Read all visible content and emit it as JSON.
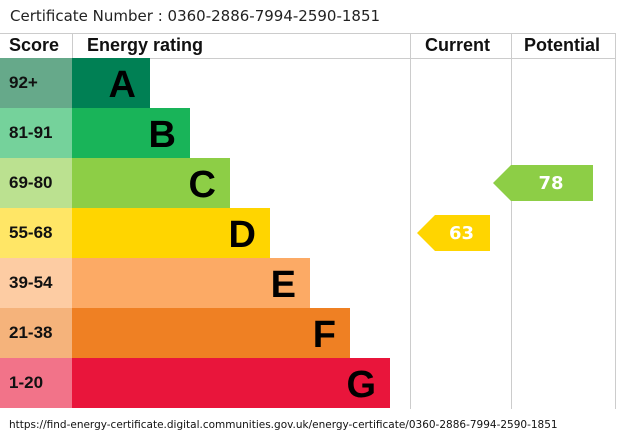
{
  "certificate": {
    "label": "Certificate Number : 0360-2886-7994-2590-1851"
  },
  "chart_data": {
    "type": "table",
    "headers": {
      "score": "Score",
      "rating": "Energy rating",
      "current": "Current",
      "potential": "Potential"
    },
    "bands": [
      {
        "score": "92+",
        "letter": "A",
        "color": "#008054",
        "score_color": "#66a98a"
      },
      {
        "score": "81-91",
        "letter": "B",
        "color": "#19b459",
        "score_color": "#75d29b"
      },
      {
        "score": "69-80",
        "letter": "C",
        "color": "#8dce46",
        "score_color": "#bbe190"
      },
      {
        "score": "55-68",
        "letter": "D",
        "color": "#ffd500",
        "score_color": "#ffe666"
      },
      {
        "score": "39-54",
        "letter": "E",
        "color": "#fcaa65",
        "score_color": "#fdcca3"
      },
      {
        "score": "21-38",
        "letter": "F",
        "color": "#ef8023",
        "score_color": "#f5b37b"
      },
      {
        "score": "1-20",
        "letter": "G",
        "color": "#e9153b",
        "score_color": "#f27389"
      }
    ],
    "current": {
      "value": "63",
      "band": "D",
      "color": "#ffd500"
    },
    "potential": {
      "value": "78",
      "band": "C",
      "color": "#8dce46"
    }
  },
  "footer": {
    "url": "https://find-energy-certificate.digital.communities.gov.uk/energy-certificate/0360-2886-7994-2590-1851"
  }
}
